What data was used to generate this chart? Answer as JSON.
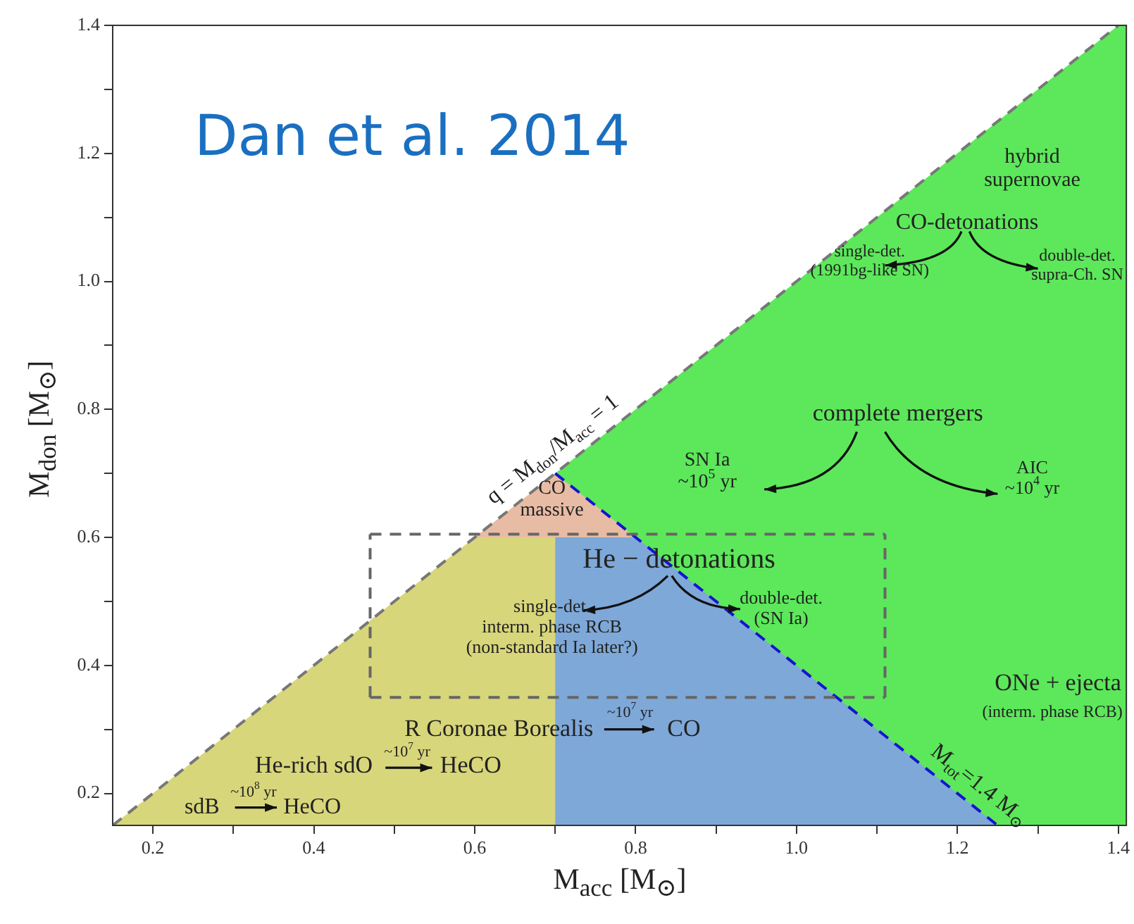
{
  "chart_data": {
    "type": "line",
    "title": "Dan et al. 2014",
    "xlabel": "M$_{acc}$ [M$_{⊙}$]",
    "ylabel": "M$_{don}$ [M$_{⊙}$]",
    "xlim": [
      0.15,
      1.41
    ],
    "ylim": [
      0.15,
      1.4
    ],
    "xticks": [
      0.2,
      {
        "value": 0.3,
        "label": null
      },
      0.4,
      {
        "value": 0.5,
        "label": null
      },
      0.6,
      {
        "value": 0.7,
        "label": null
      },
      0.8,
      {
        "value": 0.9,
        "label": null
      },
      {
        "value": 1.0,
        "label": "1.0"
      },
      {
        "value": 1.1,
        "label": null
      },
      1.2,
      {
        "value": 1.3,
        "label": null
      },
      1.4
    ],
    "yticks": [
      0.2,
      {
        "value": 0.3,
        "label": null
      },
      0.4,
      {
        "value": 0.5,
        "label": null
      },
      0.6,
      {
        "value": 0.7,
        "label": null
      },
      0.8,
      {
        "value": 0.9,
        "label": null
      },
      {
        "value": 1.0,
        "label": "1.0"
      },
      {
        "value": 1.1,
        "label": null
      },
      1.2,
      {
        "value": 1.3,
        "label": null
      },
      1.4
    ],
    "grid": false,
    "legend": false,
    "marker": "none",
    "series": [
      {
        "type": "area",
        "color": "#5ce85a",
        "x": [
          0.7,
          1.4,
          1.41
        ],
        "values": [
          0.7,
          1.4,
          1.4
        ]
      },
      {
        "type": "area",
        "color": "#e8bca4",
        "x": [
          0.6,
          0.7,
          0.8
        ],
        "values": [
          0.6,
          0.7,
          0.6
        ]
      },
      {
        "type": "area",
        "color": "#d8d67a",
        "x": [
          0.15,
          0.6,
          0.7
        ],
        "values": [
          0.15,
          0.6,
          0.6
        ]
      },
      {
        "type": "area",
        "color": "#7ea8d8",
        "x": [
          0.7,
          0.8,
          1.25
        ],
        "values": [
          0.6,
          0.6,
          0.15
        ]
      },
      {
        "type": "line",
        "name": "q = M$_{don}$/M$_{acc}$ = 1",
        "color": "#777777",
        "line_style": "dashed",
        "x": [
          0.15,
          1.4
        ],
        "values": [
          0.15,
          1.4
        ]
      },
      {
        "type": "line",
        "name": "M$_{tot}$=1.4 M$_{⊙}$",
        "color": "#1414d0",
        "line_style": "dashed",
        "x": [
          0.7,
          1.25
        ],
        "values": [
          0.7,
          0.15
        ]
      },
      {
        "type": "line",
        "color": "#666666",
        "line_style": "dashed",
        "x": [
          0.47,
          1.11
        ],
        "values": [
          0.35,
          0.35
        ]
      },
      {
        "type": "line",
        "color": "#666666",
        "line_style": "dashed",
        "x": [
          0.47,
          1.11
        ],
        "values": [
          0.605,
          0.605
        ]
      },
      {
        "type": "line",
        "color": "#666666",
        "line_style": "dashed",
        "x": [
          0.47,
          0.47
        ],
        "values": [
          0.35,
          0.605
        ]
      },
      {
        "type": "line",
        "color": "#666666",
        "line_style": "dashed",
        "x": [
          1.11,
          1.11
        ],
        "values": [
          0.35,
          0.605
        ]
      }
    ],
    "annotations": [
      "hybrid\nsupernovae",
      "CO-detonations",
      "single-det.\n(1991bg-like SN)",
      "double-det.\nsupra-Ch. SN",
      "complete mergers",
      "SN Ia\n~10$^{5}$ yr",
      "AIC\n~10$^{4}$ yr",
      "CO\nmassive",
      "He − detonations",
      "single-det.\ninterm. phase RCB\n(non-standard Ia later?)",
      "double-det.\n(SN Ia)",
      "ONe + ejecta",
      "(interm. phase RCB)",
      "R Coronae Borealis",
      "~10$^{7}$ yr",
      "CO",
      "He-rich sdO",
      "~10$^{7}$ yr",
      "HeCO",
      "sdB",
      "~10$^{8}$ yr",
      "HeCO"
    ]
  }
}
